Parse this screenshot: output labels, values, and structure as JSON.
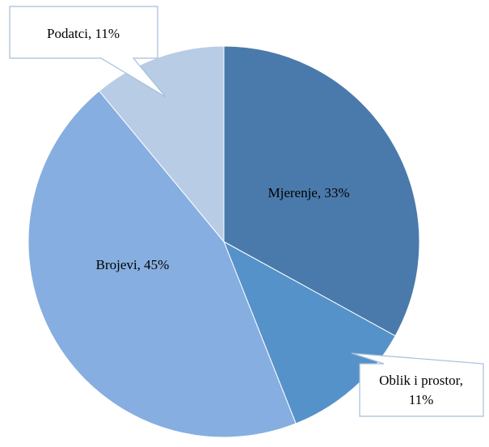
{
  "chart_data": {
    "type": "pie",
    "title": "",
    "slices": [
      {
        "label": "Mjerenje",
        "value": 33,
        "text": "Mjerenje,  33%",
        "color": "#4a7aab"
      },
      {
        "label": "Oblik i prostor",
        "value": 11,
        "text_lines": [
          "Oblik i prostor,",
          "11%"
        ],
        "color": "#5592c9"
      },
      {
        "label": "Brojevi",
        "value": 45,
        "text": "Brojevi,  45%",
        "color": "#86aee0"
      },
      {
        "label": "Podatci",
        "value": 11,
        "text": "Podatci, 11%",
        "color": "#b9cce6"
      }
    ]
  }
}
